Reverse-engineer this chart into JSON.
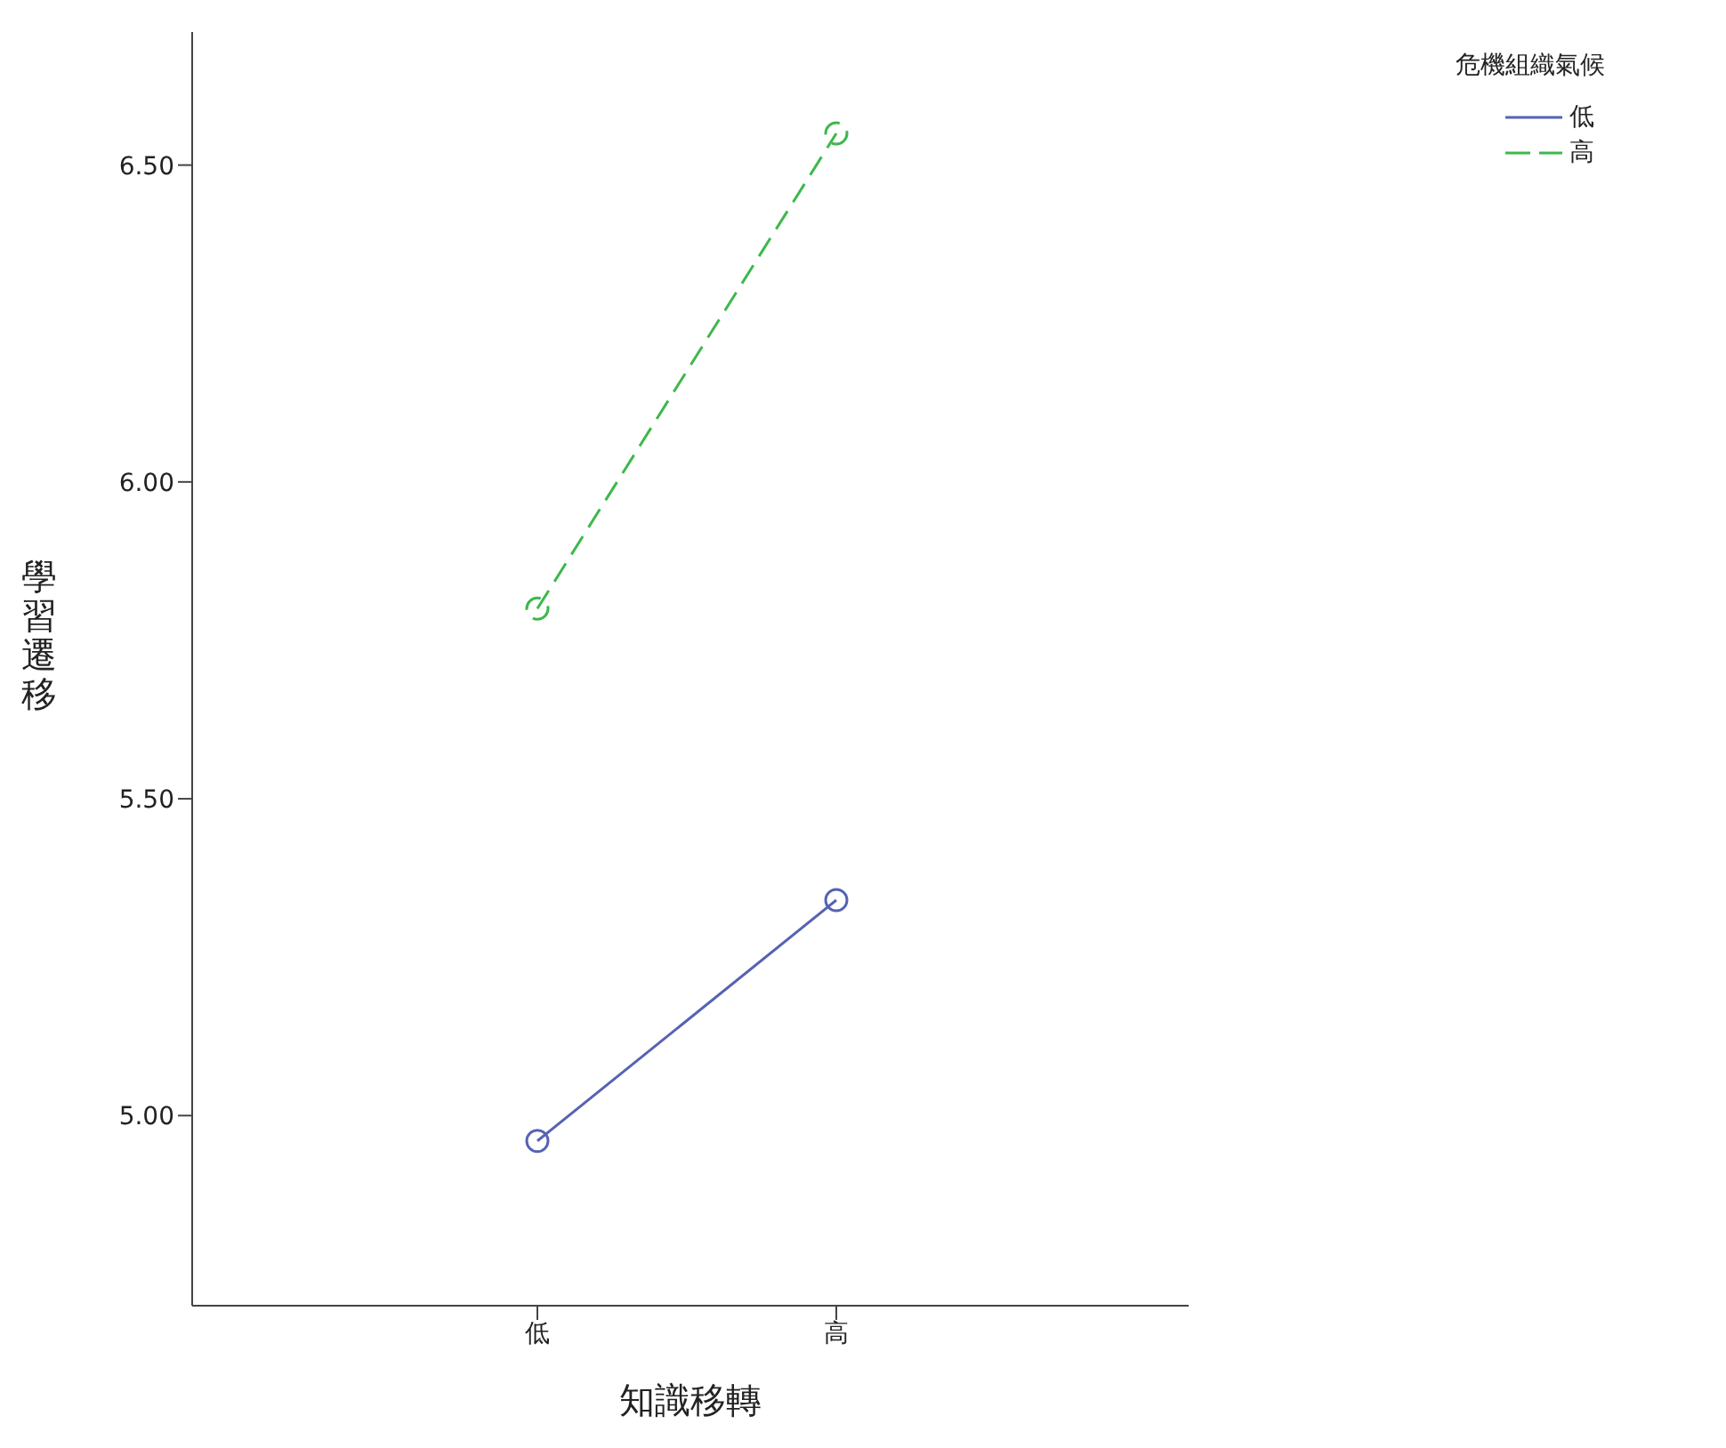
{
  "chart_data": {
    "type": "line",
    "xlabel": "知識移轉",
    "ylabel": "學習遷移",
    "legend_title": "危機組織氣候",
    "categories": [
      "低",
      "高"
    ],
    "series": [
      {
        "name": "低",
        "color": "#5563b3",
        "values": [
          4.96,
          5.34
        ],
        "line_style": "solid"
      },
      {
        "name": "高",
        "color": "#3db84c",
        "values": [
          5.8,
          6.55
        ],
        "line_style": "dashed"
      }
    ],
    "ylim": [
      4.7,
      6.71
    ],
    "yticks": [
      {
        "value": 5,
        "label": "5.00"
      },
      {
        "value": 5.5,
        "label": "5.50"
      },
      {
        "value": 6,
        "label": "6.00"
      },
      {
        "value": 6.5,
        "label": "6.50"
      }
    ],
    "grid": false,
    "legend": "top right",
    "marker": "circle"
  }
}
